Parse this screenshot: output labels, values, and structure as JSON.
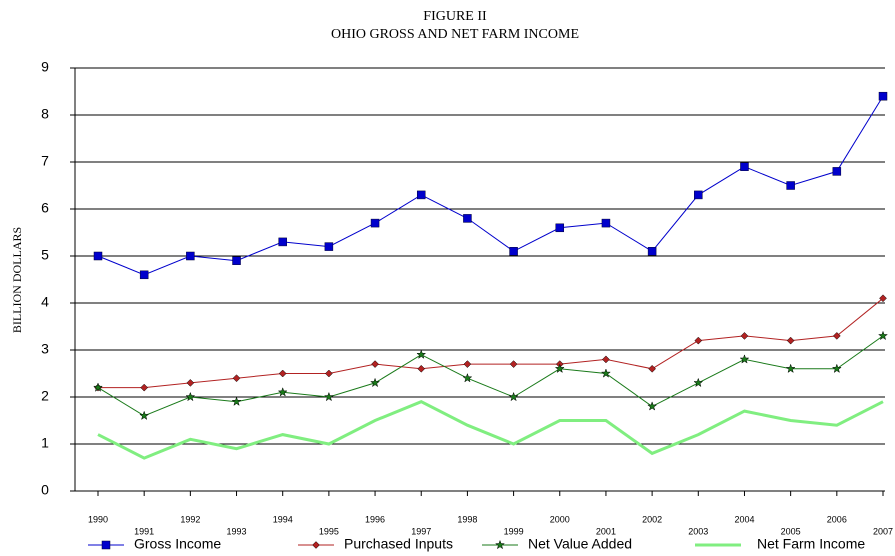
{
  "chart_data": {
    "type": "line",
    "title": "FIGURE II",
    "subtitle": "OHIO GROSS AND NET FARM INCOME",
    "y_label": "BILLION  DOLLARS",
    "categories": [
      "1990",
      "1991",
      "1992",
      "1993",
      "1994",
      "1995",
      "1996",
      "1997",
      "1998",
      "1999",
      "2000",
      "2001",
      "2002",
      "2003",
      "2004",
      "2005",
      "2006",
      "2007"
    ],
    "ylim": [
      0,
      9
    ],
    "yticks": [
      0,
      1,
      2,
      3,
      4,
      5,
      6,
      7,
      8,
      9
    ],
    "grid": true,
    "legend": "bottom",
    "series": [
      {
        "name": "Gross  Income",
        "color": "#0000cc",
        "marker": "square",
        "values": [
          5.0,
          4.6,
          5.0,
          4.9,
          5.3,
          5.2,
          5.7,
          6.3,
          5.8,
          5.1,
          5.6,
          5.7,
          5.1,
          6.3,
          6.9,
          6.5,
          6.8,
          8.4
        ]
      },
      {
        "name": "Purchased Inputs",
        "color": "#b22222",
        "marker": "diamond",
        "values": [
          2.2,
          2.2,
          2.3,
          2.4,
          2.5,
          2.5,
          2.7,
          2.6,
          2.7,
          2.7,
          2.7,
          2.8,
          2.6,
          3.2,
          3.3,
          3.2,
          3.3,
          4.1
        ]
      },
      {
        "name": "Net Value Added",
        "color": "#1a7a1a",
        "marker": "star",
        "values": [
          2.2,
          1.6,
          2.0,
          1.9,
          2.1,
          2.0,
          2.3,
          2.9,
          2.4,
          2.0,
          2.6,
          2.5,
          1.8,
          2.3,
          2.8,
          2.6,
          2.6,
          3.3
        ]
      },
      {
        "name": "Net Farm Income",
        "color": "#80ee80",
        "marker": "none",
        "values": [
          1.2,
          0.7,
          1.1,
          0.9,
          1.2,
          1.0,
          1.5,
          1.9,
          1.4,
          1.0,
          1.5,
          1.5,
          0.8,
          1.2,
          1.7,
          1.5,
          1.4,
          1.9
        ]
      }
    ]
  }
}
